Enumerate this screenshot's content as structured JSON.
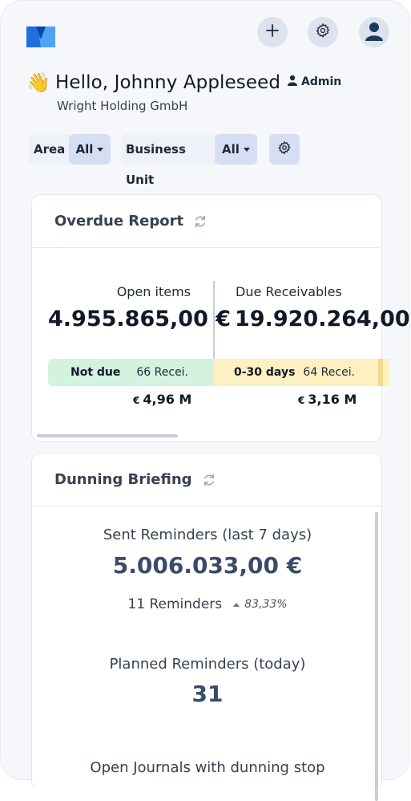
{
  "header": {
    "greeting_emoji": "👋",
    "greeting": "Hello, Johnny Appleseed",
    "role": "Admin",
    "company": "Wright Holding GmbH"
  },
  "icons": {
    "logo": "app-logo",
    "add": "plus-icon",
    "settings": "gear-icon",
    "avatar": "user-icon"
  },
  "filters": {
    "area_label": "Area",
    "area_value": "All",
    "bu_label": "Business Unit",
    "bu_value": "All"
  },
  "overdue_report": {
    "title": "Overdue Report",
    "open_items_label": "Open items",
    "open_items_value": "4.955.865,00 €",
    "due_receivables_label": "Due Receivables",
    "due_receivables_value": "19.920.264,00",
    "buckets": [
      {
        "name": "Not due",
        "count": "66 Recei.",
        "currency": "€",
        "amount": "4,96 M",
        "color": "#d3f2df"
      },
      {
        "name": "0-30 days",
        "count": "64 Recei.",
        "currency": "€",
        "amount": "3,16 M",
        "color": "#fdf0c1"
      }
    ]
  },
  "dunning_briefing": {
    "title": "Dunning Briefing",
    "sent_label": "Sent Reminders (last 7 days)",
    "sent_value": "5.006.033,00 €",
    "sent_count": "11 Reminders",
    "sent_trend": "83,33%",
    "planned_label": "Planned Reminders (today)",
    "planned_value": "31",
    "journals_label": "Open Journals with dunning stop"
  },
  "colors": {
    "accent": "#1e6fe0",
    "button_bg": "#dde3ee",
    "select_bg": "#d6def3",
    "value_text": "#3a4a6b"
  }
}
